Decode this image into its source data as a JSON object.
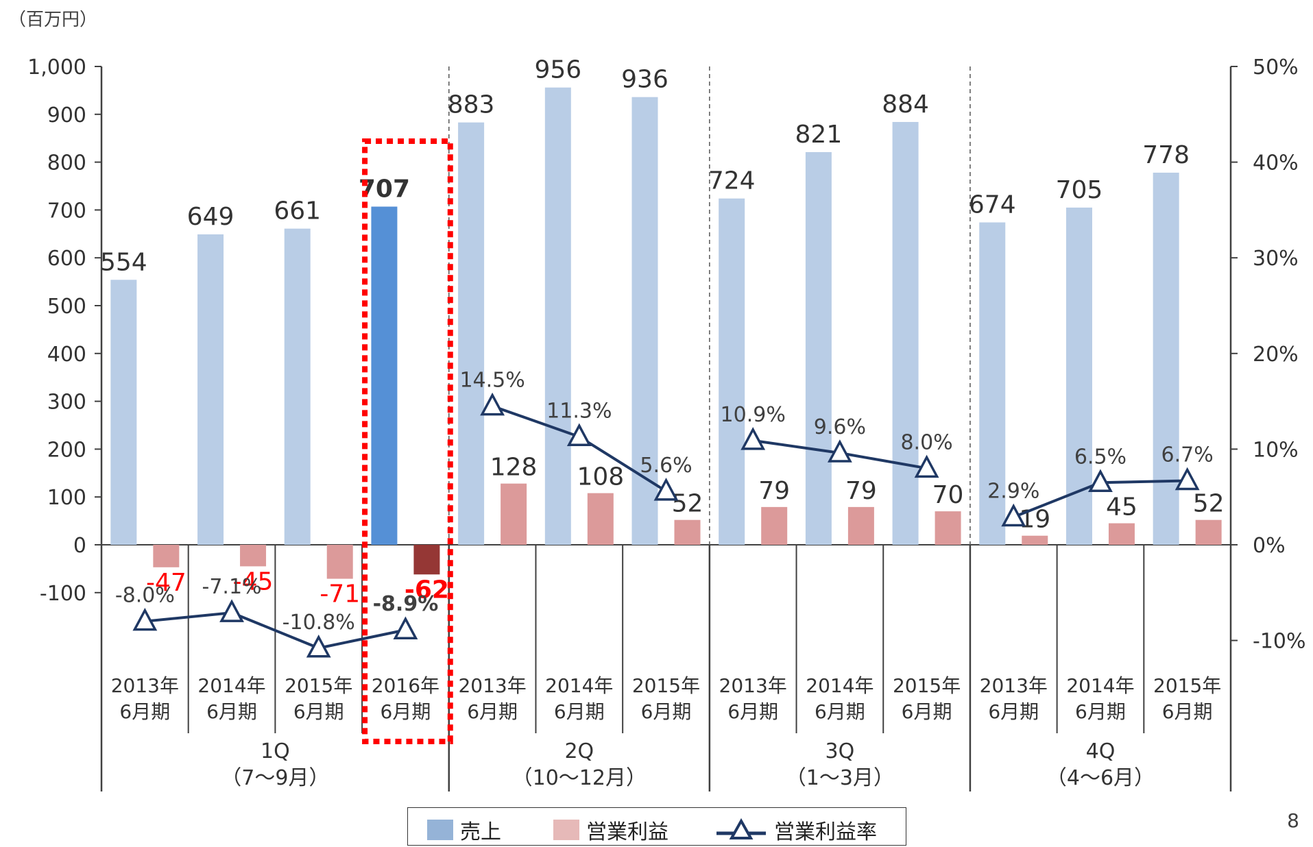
{
  "unit_label": "（百万円）",
  "page_number": "8",
  "legend": {
    "sales": "売上",
    "op_profit": "営業利益",
    "op_margin": "営業利益率"
  },
  "colors": {
    "sales": "#b9cde6",
    "sales_highlight": "#5590d6",
    "profit": "#dc9a9a",
    "profit_highlight": "#953735",
    "line": "#1f3864",
    "negative_label": "#ff0000",
    "highlight_box": "#ff0000"
  },
  "chart_data": {
    "type": "bar",
    "title": "",
    "y_left": {
      "range": [
        -100,
        1000
      ],
      "ticks": [
        "1,000",
        "900",
        "800",
        "700",
        "600",
        "500",
        "400",
        "300",
        "200",
        "100",
        "0",
        "-100"
      ]
    },
    "y_right": {
      "range": [
        -10,
        50
      ],
      "ticks": [
        "50%",
        "40%",
        "30%",
        "20%",
        "10%",
        "0%",
        "-10%"
      ]
    },
    "categories": [
      {
        "year": "2013年",
        "period": "6月期"
      },
      {
        "year": "2014年",
        "period": "6月期"
      },
      {
        "year": "2015年",
        "period": "6月期"
      },
      {
        "year": "2016年",
        "period": "6月期"
      },
      {
        "year": "2013年",
        "period": "6月期"
      },
      {
        "year": "2014年",
        "period": "6月期"
      },
      {
        "year": "2015年",
        "period": "6月期"
      },
      {
        "year": "2013年",
        "period": "6月期"
      },
      {
        "year": "2014年",
        "period": "6月期"
      },
      {
        "year": "2015年",
        "period": "6月期"
      },
      {
        "year": "2013年",
        "period": "6月期"
      },
      {
        "year": "2014年",
        "period": "6月期"
      },
      {
        "year": "2015年",
        "period": "6月期"
      }
    ],
    "groups": [
      {
        "name": "1Q",
        "months": "（7～9月）",
        "count": 4
      },
      {
        "name": "2Q",
        "months": "（10～12月）",
        "count": 3
      },
      {
        "name": "3Q",
        "months": "（1～3月）",
        "count": 3
      },
      {
        "name": "4Q",
        "months": "（4～6月）",
        "count": 3
      }
    ],
    "series": [
      {
        "name": "売上",
        "type": "bar",
        "values": [
          554,
          649,
          661,
          707,
          883,
          956,
          936,
          724,
          821,
          884,
          674,
          705,
          778
        ],
        "labels": [
          "554",
          "649",
          "661",
          "707",
          "883",
          "956",
          "936",
          "724",
          "821",
          "884",
          "674",
          "705",
          "778"
        ]
      },
      {
        "name": "営業利益",
        "type": "bar",
        "values": [
          -47,
          -45,
          -71,
          -62,
          128,
          108,
          52,
          79,
          79,
          70,
          19,
          45,
          52
        ],
        "labels": [
          "-47",
          "-45",
          "-71",
          "-62",
          "128",
          "108",
          "52",
          "79",
          "79",
          "70",
          "19",
          "45",
          "52"
        ]
      },
      {
        "name": "営業利益率",
        "type": "line",
        "axis": "right",
        "values": [
          -8.0,
          -7.1,
          -10.8,
          -8.9,
          14.5,
          11.3,
          5.6,
          10.9,
          9.6,
          8.0,
          2.9,
          6.5,
          6.7
        ],
        "labels": [
          "-8.0%",
          "-7.1%",
          "-10.8%",
          "-8.9%",
          "14.5%",
          "11.3%",
          "5.6%",
          "10.9%",
          "9.6%",
          "8.0%",
          "2.9%",
          "6.5%",
          "6.7%"
        ]
      }
    ],
    "highlight_index": 3
  }
}
